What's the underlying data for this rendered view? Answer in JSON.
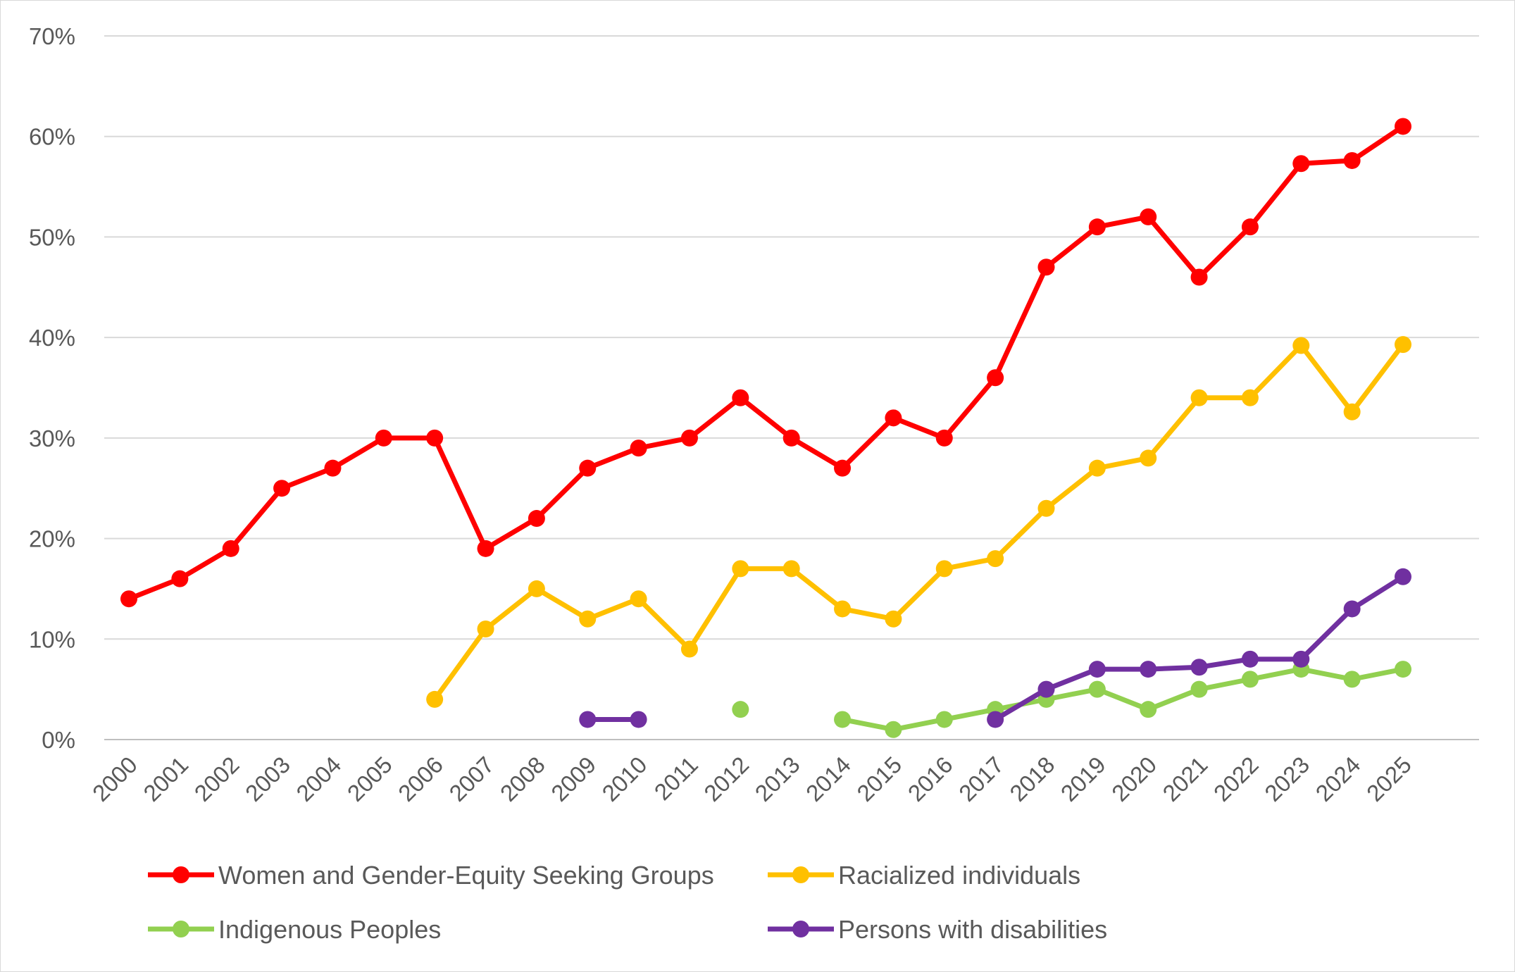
{
  "chart_data": {
    "type": "line",
    "x": [
      "2000",
      "2001",
      "2002",
      "2003",
      "2004",
      "2005",
      "2006",
      "2007",
      "2008",
      "2009",
      "2010",
      "2011",
      "2012",
      "2013",
      "2014",
      "2015",
      "2016",
      "2017",
      "2018",
      "2019",
      "2020",
      "2021",
      "2022",
      "2023",
      "2024",
      "2025"
    ],
    "ylim": [
      0,
      70
    ],
    "yticks": [
      "0%",
      "10%",
      "20%",
      "30%",
      "40%",
      "50%",
      "60%",
      "70%"
    ],
    "grid": true,
    "legend_position": "bottom",
    "series": [
      {
        "name": "Women and Gender-Equity Seeking Groups",
        "color": "#ff0000",
        "values": [
          14,
          16,
          19,
          25,
          27,
          30,
          30,
          19,
          22,
          27,
          29,
          30,
          34,
          30,
          27,
          32,
          30,
          36,
          47,
          51,
          52,
          46,
          51,
          57.3,
          57.6,
          61
        ]
      },
      {
        "name": "Racialized individuals",
        "color": "#ffc000",
        "values": [
          null,
          null,
          null,
          null,
          null,
          null,
          4,
          11,
          15,
          12,
          14,
          9,
          17,
          17,
          13,
          12,
          17,
          18,
          23,
          27,
          28,
          34,
          34,
          39.2,
          32.6,
          39.3
        ]
      },
      {
        "name": "Indigenous Peoples",
        "color": "#92d050",
        "values": [
          null,
          null,
          null,
          null,
          null,
          null,
          null,
          null,
          null,
          null,
          null,
          null,
          3,
          null,
          2,
          1,
          2,
          3,
          4,
          5,
          3,
          5,
          6,
          7,
          6,
          7
        ]
      },
      {
        "name": "Persons with disabilities",
        "color": "#7030a0",
        "values": [
          null,
          null,
          null,
          null,
          null,
          null,
          null,
          null,
          null,
          2,
          2,
          null,
          null,
          null,
          null,
          null,
          null,
          2,
          5,
          7,
          7,
          7.2,
          8,
          8,
          13,
          16.2
        ]
      }
    ]
  }
}
